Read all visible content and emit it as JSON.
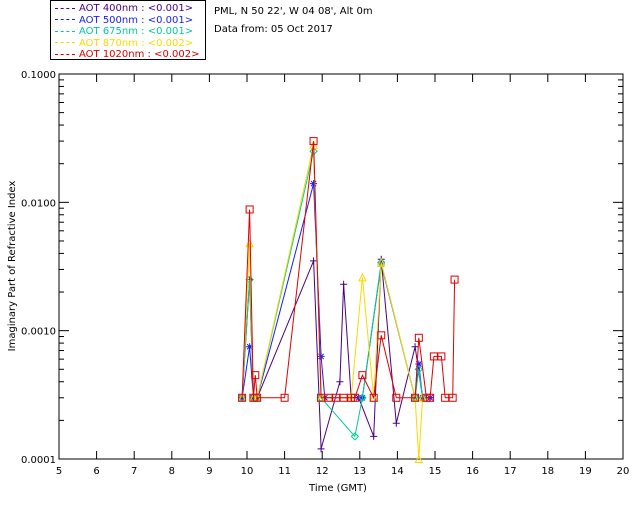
{
  "site": {
    "location": "PML, N 50 22', W 04 08', Alt 0m",
    "date": "Data from: 05 Oct 2017"
  },
  "chart_data": {
    "type": "line",
    "title": "",
    "xlabel": "Time (GMT)",
    "ylabel": "Imaginary Part of Refractive Index",
    "xlim": [
      5,
      20
    ],
    "ylim": [
      0.0001,
      0.1
    ],
    "yscale": "log",
    "xticks": [
      "5",
      "6",
      "7",
      "8",
      "9",
      "10",
      "11",
      "12",
      "13",
      "14",
      "15",
      "16",
      "17",
      "18",
      "19",
      "20"
    ],
    "yticks": [
      "0.0001",
      "0.0010",
      "0.0100",
      "0.1000"
    ],
    "legend_position": "top-left, outside plot",
    "series": [
      {
        "name": "AOT 400nm : <0.001>",
        "color": "#4b0082",
        "marker": "plus",
        "points": [
          [
            9.87,
            0.0003
          ],
          [
            10.07,
            0.0025
          ],
          [
            10.17,
            0.0003
          ],
          [
            10.27,
            0.0003
          ],
          [
            11.77,
            0.0035
          ],
          [
            11.97,
            0.00012
          ],
          [
            12.47,
            0.0004
          ],
          [
            12.57,
            0.0023
          ],
          [
            12.77,
            0.0003
          ],
          [
            12.97,
            0.0003
          ],
          [
            13.37,
            0.00015
          ],
          [
            13.57,
            0.0036
          ],
          [
            13.97,
            0.00019
          ],
          [
            14.47,
            0.00075
          ],
          [
            14.67,
            0.0003
          ],
          [
            14.87,
            0.0003
          ]
        ]
      },
      {
        "name": "AOT 500nm : <0.001>",
        "color": "#1a1aff",
        "marker": "asterisk",
        "points": [
          [
            9.87,
            0.0003
          ],
          [
            10.07,
            0.00075
          ],
          [
            10.17,
            0.0003
          ],
          [
            10.27,
            0.0003
          ],
          [
            11.77,
            0.014
          ],
          [
            11.97,
            0.00063
          ],
          [
            12.07,
            0.0003
          ],
          [
            12.97,
            0.0003
          ],
          [
            13.07,
            0.0003
          ],
          [
            13.57,
            0.0033
          ],
          [
            14.47,
            0.0003
          ],
          [
            14.57,
            0.00055
          ],
          [
            14.67,
            0.0003
          ],
          [
            14.87,
            0.0003
          ]
        ]
      },
      {
        "name": "AOT 675nm : <0.001>",
        "color": "#00cc99",
        "marker": "diamond",
        "points": [
          [
            9.87,
            0.0003
          ],
          [
            10.07,
            0.0025
          ],
          [
            10.17,
            0.0003
          ],
          [
            10.27,
            0.0003
          ],
          [
            11.77,
            0.025
          ],
          [
            11.97,
            0.0003
          ],
          [
            12.87,
            0.00015
          ],
          [
            13.07,
            0.0003
          ],
          [
            13.57,
            0.0034
          ],
          [
            14.47,
            0.0003
          ],
          [
            14.57,
            0.0005
          ],
          [
            14.67,
            0.0003
          ]
        ]
      },
      {
        "name": "AOT 870nm : <0.002>",
        "color": "#ffd700",
        "marker": "triangle",
        "points": [
          [
            9.87,
            0.0003
          ],
          [
            10.07,
            0.0048
          ],
          [
            10.17,
            0.0003
          ],
          [
            10.27,
            0.0003
          ],
          [
            11.77,
            0.028
          ],
          [
            11.97,
            0.0003
          ],
          [
            12.77,
            0.0003
          ],
          [
            13.07,
            0.0026
          ],
          [
            13.37,
            0.0003
          ],
          [
            13.57,
            0.0034
          ],
          [
            14.47,
            0.0003
          ],
          [
            14.57,
            0.0001
          ],
          [
            14.67,
            0.0003
          ]
        ]
      },
      {
        "name": "AOT 1020nm : <0.002>",
        "color": "#e00000",
        "marker": "square",
        "points": [
          [
            9.87,
            0.0003
          ],
          [
            10.07,
            0.0088
          ],
          [
            10.17,
            0.0003
          ],
          [
            10.22,
            0.00045
          ],
          [
            10.27,
            0.0003
          ],
          [
            11.0,
            0.0003
          ],
          [
            11.77,
            0.03
          ],
          [
            11.97,
            0.0003
          ],
          [
            12.17,
            0.0003
          ],
          [
            12.37,
            0.0003
          ],
          [
            12.57,
            0.0003
          ],
          [
            12.77,
            0.0003
          ],
          [
            12.87,
            0.0003
          ],
          [
            13.07,
            0.00045
          ],
          [
            13.37,
            0.0003
          ],
          [
            13.57,
            0.00092
          ],
          [
            13.97,
            0.0003
          ],
          [
            14.47,
            0.0003
          ],
          [
            14.57,
            0.00088
          ],
          [
            14.77,
            0.0003
          ],
          [
            14.87,
            0.0003
          ],
          [
            14.97,
            0.00063
          ],
          [
            15.17,
            0.00063
          ],
          [
            15.27,
            0.0003
          ],
          [
            15.47,
            0.0003
          ],
          [
            15.52,
            0.0025
          ]
        ]
      }
    ]
  }
}
